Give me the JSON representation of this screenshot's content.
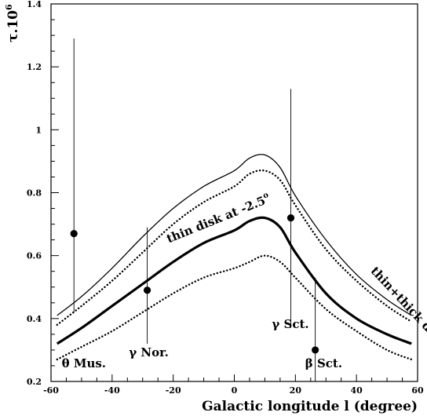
{
  "chart_data": {
    "type": "line",
    "title": "",
    "xlabel": "Galactic longitude l (degree)",
    "ylabel": "τ.10",
    "ylabel_exp": "6",
    "xlim": [
      -60,
      60
    ],
    "ylim": [
      0.2,
      1.4
    ],
    "x_ticks": [
      -60,
      -40,
      -20,
      0,
      20,
      40,
      60
    ],
    "y_ticks": [
      0.2,
      0.4,
      0.6,
      0.8,
      1.0,
      1.2,
      1.4
    ],
    "x_tick_labels": [
      "-60",
      "-40",
      "-20",
      "0",
      "20",
      "40",
      "60"
    ],
    "y_tick_labels": [
      "0.2",
      "0.4",
      "0.6",
      "0.8",
      "1",
      "1.2",
      "1.4"
    ],
    "grid": false,
    "legend": "none",
    "series": [
      {
        "style": "thin-solid",
        "x": [
          -58,
          -50,
          -40,
          -30,
          -20,
          -10,
          0,
          5,
          10,
          15,
          20,
          30,
          40,
          50,
          58
        ],
        "y": [
          0.41,
          0.47,
          0.56,
          0.66,
          0.75,
          0.82,
          0.87,
          0.91,
          0.92,
          0.88,
          0.79,
          0.65,
          0.54,
          0.46,
          0.41
        ]
      },
      {
        "style": "dotted",
        "x": [
          -58,
          -50,
          -40,
          -30,
          -20,
          -10,
          0,
          5,
          10,
          15,
          20,
          30,
          40,
          50,
          58
        ],
        "y": [
          0.38,
          0.44,
          0.52,
          0.61,
          0.7,
          0.77,
          0.82,
          0.86,
          0.87,
          0.84,
          0.76,
          0.62,
          0.52,
          0.44,
          0.39
        ]
      },
      {
        "style": "thick-solid",
        "x": [
          -58,
          -50,
          -40,
          -30,
          -20,
          -10,
          0,
          5,
          10,
          15,
          20,
          30,
          40,
          50,
          58
        ],
        "y": [
          0.32,
          0.37,
          0.44,
          0.51,
          0.58,
          0.64,
          0.68,
          0.71,
          0.72,
          0.69,
          0.61,
          0.48,
          0.4,
          0.35,
          0.32
        ]
      },
      {
        "style": "dotted",
        "x": [
          -58,
          -50,
          -40,
          -30,
          -20,
          -10,
          0,
          5,
          10,
          15,
          20,
          30,
          40,
          50,
          58
        ],
        "y": [
          0.27,
          0.31,
          0.36,
          0.42,
          0.48,
          0.53,
          0.56,
          0.58,
          0.6,
          0.58,
          0.53,
          0.43,
          0.36,
          0.3,
          0.27
        ]
      }
    ],
    "points": [
      {
        "x": -52.5,
        "y": 0.67,
        "err_low": 0.42,
        "err_high": 1.29
      },
      {
        "x": -28.5,
        "y": 0.49,
        "err_low": 0.32,
        "err_high": 0.69
      },
      {
        "x": 18.5,
        "y": 0.72,
        "err_low": 0.37,
        "err_high": 1.13
      },
      {
        "x": 26.5,
        "y": 0.3,
        "err_low": 0.2,
        "err_high": 0.53
      }
    ],
    "annotations": [
      {
        "text": "θ Mus.",
        "x": -56.5,
        "y": 0.245
      },
      {
        "text": "γ Nor.",
        "x": -34.5,
        "y": 0.28
      },
      {
        "text": "γ Sct.",
        "x": 12.3,
        "y": 0.37
      },
      {
        "text": "β Sct.",
        "x": 23.2,
        "y": 0.245
      },
      {
        "text": "thin disk at -2.5",
        "superscript": "o",
        "x": -21.5,
        "y": 0.64,
        "rotate": -22
      },
      {
        "text": "thin+thick disks",
        "x": 44.5,
        "y": 0.55,
        "rotate": 47
      }
    ]
  }
}
